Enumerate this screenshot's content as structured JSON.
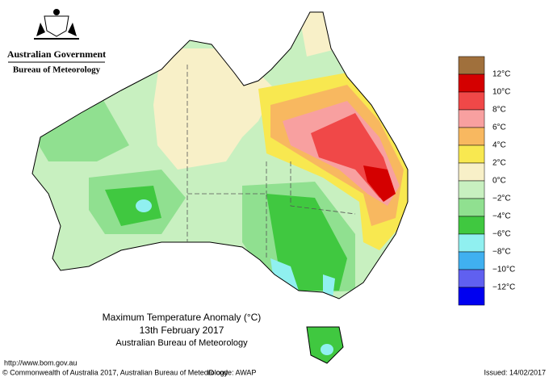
{
  "header": {
    "government": "Australian Government",
    "agency": "Bureau of Meteorology"
  },
  "map": {
    "title": "Maximum Temperature Anomaly (°C)",
    "date": "13th February 2017",
    "source": "Australian Bureau of Meteorology"
  },
  "legend": {
    "labels": [
      "12°C",
      "10°C",
      "8°C",
      "6°C",
      "4°C",
      "2°C",
      "0°C",
      "−2°C",
      "−4°C",
      "−6°C",
      "−8°C",
      "−10°C",
      "−12°C"
    ],
    "colors": [
      "#a0703c",
      "#d40000",
      "#f04848",
      "#f8a0a0",
      "#f8b860",
      "#f8e850",
      "#f8f0c8",
      "#c8f0c0",
      "#90e090",
      "#40c840",
      "#90f0f0",
      "#40b0f0",
      "#6060f0",
      "#0000f0"
    ]
  },
  "footer": {
    "url": "http://www.bom.gov.au",
    "copyright": "© Commonwealth of Australia 2017, Australian Bureau of Meteorology",
    "id_code": "ID code: AWAP",
    "issued": "Issued: 14/02/2017"
  }
}
